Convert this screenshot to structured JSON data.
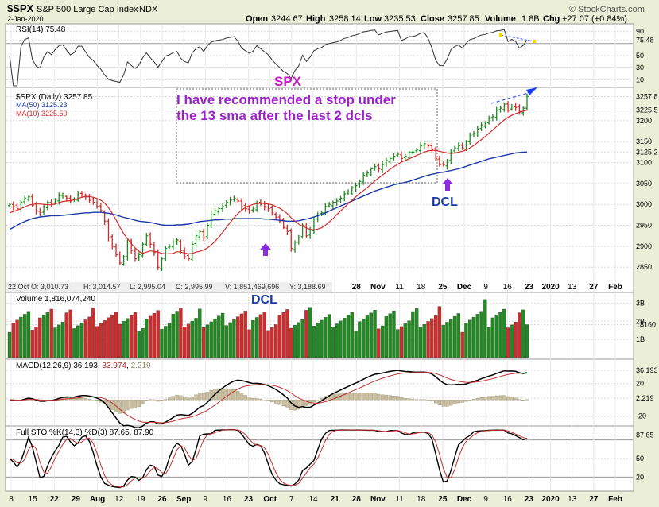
{
  "header": {
    "symbol": "$SPX",
    "name": "S&P 500 Large Cap Index",
    "exchange": "INDX",
    "date": "2-Jan-2020",
    "open_label": "Open",
    "open": "3244.67",
    "high_label": "High",
    "high": "3258.14",
    "low_label": "Low",
    "low": "3235.53",
    "close_label": "Close",
    "close": "3257.85",
    "volume_label": "Volume",
    "volume": "1.8B",
    "chg_label": "Chg",
    "chg": "+27.07 (+0.84%)",
    "brand": "© StockCharts.com"
  },
  "rsi_panel": {
    "label": "RSI(14) 75.48",
    "ticks": [
      "90",
      "75.48",
      "50",
      "30",
      "10"
    ],
    "tick_values": [
      90,
      75.48,
      50,
      30,
      10
    ],
    "ylim": [
      0,
      100
    ]
  },
  "price_panel": {
    "legend": [
      "$SPX (Daily) 3257.85",
      "MA(50) 3125.23",
      "MA(10) 3225.50"
    ],
    "ticks": [
      "3257.8",
      "3225.5",
      "3200",
      "3150",
      "3125.2",
      "3100",
      "3050",
      "3000",
      "2950",
      "2900",
      "2850"
    ],
    "tick_values": [
      3257.8,
      3225.5,
      3200,
      3150,
      3125.2,
      3100,
      3050,
      3000,
      2950,
      2900,
      2850
    ],
    "ylim": [
      2820,
      3272
    ],
    "annotation_title": "SPX",
    "annotation_line1": "I have recommended a stop under",
    "annotation_line2": "the 13 sma after the last 2 dcls",
    "dcl_label_1": "DCL",
    "dcl_label_2": "DCL",
    "crosshair_readout": [
      "22 Oct O: 3,010.73",
      "H: 3,014.57",
      "L: 2,995.04",
      "C: 2,995.99",
      "V: 1,851,469,696",
      "Y: 3,188.69"
    ],
    "inner_month_labels": [
      "28",
      "Nov",
      "11",
      "18",
      "25",
      "Dec",
      "9",
      "16",
      "23",
      "2020",
      "13",
      "27",
      "Feb"
    ]
  },
  "volume_panel": {
    "label": "Volume 1,816,074,240",
    "ticks": [
      "3B",
      "2B",
      "18160",
      "1B"
    ],
    "tick_values": [
      3000000000,
      2000000000,
      1816000000,
      1000000000
    ],
    "ylim": [
      0,
      3500000000
    ]
  },
  "macd_panel": {
    "label_prefix": "MACD(12,26,9)",
    "macd": "36.193",
    "signal": "33.974",
    "hist": "2.219",
    "ticks": [
      "36.193",
      "20",
      "2.219",
      "-20"
    ],
    "tick_values": [
      36.193,
      20,
      2.219,
      -20
    ],
    "ylim": [
      -30,
      48
    ]
  },
  "sto_panel": {
    "label": "Full STO %K(14,3) %D(3) 87.65, 87.90",
    "ticks": [
      "87.65",
      "50",
      "20"
    ],
    "tick_values": [
      87.65,
      50,
      20
    ],
    "ylim": [
      0,
      100
    ]
  },
  "x_axis": {
    "labels": [
      "8",
      "15",
      "22",
      "29",
      "Aug",
      "12",
      "19",
      "26",
      "Sep",
      "9",
      "16",
      "23",
      "Oct",
      "7",
      "14",
      "21",
      "28",
      "Nov",
      "11",
      "18",
      "25",
      "Dec",
      "9",
      "16",
      "23",
      "2020",
      "13",
      "27",
      "Feb"
    ]
  },
  "colors": {
    "up": "#1e8c1e",
    "down": "#d42a2a",
    "ma50": "#1a3aa8",
    "ma10": "#d42a2a",
    "annotation": "#a020d0",
    "dcl": "#1a3aa8",
    "arrow": "#8a2be2",
    "trend": "#3355ee"
  },
  "chart_data": {
    "type": "candlestick",
    "title": "$SPX S&P 500 Large Cap Index INDX",
    "xlabel": "",
    "ylabel": "",
    "ylim": [
      2820,
      3272
    ],
    "series": [
      {
        "name": "$SPX (Daily)",
        "values": [
          3000,
          2995,
          2990,
          3005,
          3015,
          3018,
          2998,
          2985,
          2980,
          2995,
          3005,
          3000,
          3010,
          3020,
          3022,
          3015,
          3008,
          3012,
          3025,
          3025,
          3018,
          3010,
          3005,
          2995,
          2985,
          2960,
          2920,
          2900,
          2880,
          2860,
          2875,
          2910,
          2890,
          2870,
          2880,
          2905,
          2925,
          2905,
          2885,
          2850,
          2870,
          2895,
          2900,
          2910,
          2915,
          2890,
          2875,
          2870,
          2905,
          2925,
          2935,
          2920,
          2950,
          2975,
          2985,
          2990,
          2995,
          3005,
          3010,
          3015,
          3008,
          2995,
          2990,
          2985,
          2990,
          3005,
          3000,
          2995,
          2990,
          2980,
          2970,
          2960,
          2945,
          2935,
          2895,
          2910,
          2920,
          2950,
          2925,
          2940,
          2965,
          2975,
          2980,
          2995,
          3000,
          3005,
          3008,
          3015,
          3025,
          3030,
          3040,
          3045,
          3055,
          3070,
          3075,
          3085,
          3090,
          3085,
          3095,
          3105,
          3110,
          3115,
          3120,
          3110,
          3115,
          3125,
          3125,
          3130,
          3140,
          3145,
          3140,
          3130,
          3110,
          3095,
          3095,
          3105,
          3125,
          3135,
          3140,
          3135,
          3150,
          3165,
          3170,
          3180,
          3190,
          3195,
          3205,
          3210,
          3225,
          3230,
          3240,
          3225,
          3235,
          3232,
          3222,
          3230,
          3257.85
        ]
      },
      {
        "name": "MA(50)",
        "values": [
          2940,
          2945,
          2950,
          2955,
          2959,
          2963,
          2966,
          2968,
          2970,
          2971,
          2972,
          2973,
          2973,
          2973,
          2974,
          2975,
          2976,
          2977,
          2978,
          2979,
          2980,
          2980,
          2981,
          2981,
          2981,
          2980,
          2979,
          2977,
          2975,
          2972,
          2969,
          2967,
          2965,
          2962,
          2960,
          2959,
          2958,
          2957,
          2955,
          2953,
          2951,
          2950,
          2950,
          2950,
          2951,
          2951,
          2952,
          2953,
          2955,
          2957,
          2959,
          2960,
          2961,
          2962,
          2963,
          2963,
          2964,
          2965,
          2965,
          2966,
          2966,
          2966,
          2966,
          2966,
          2966,
          2966,
          2966,
          2965,
          2965,
          2964,
          2963,
          2962,
          2961,
          2960,
          2960,
          2960,
          2961,
          2963,
          2965,
          2967,
          2970,
          2973,
          2976,
          2980,
          2984,
          2988,
          2992,
          2996,
          3000,
          3004,
          3008,
          3012,
          3016,
          3020,
          3024,
          3028,
          3032,
          3035,
          3038,
          3041,
          3044,
          3047,
          3049,
          3051,
          3053,
          3055,
          3058,
          3061,
          3064,
          3067,
          3070,
          3072,
          3074,
          3076,
          3077,
          3079,
          3081,
          3083,
          3085,
          3088,
          3091,
          3094,
          3097,
          3100,
          3103,
          3106,
          3109,
          3111,
          3113,
          3115,
          3117,
          3119,
          3121,
          3123,
          3124,
          3125,
          3125.23
        ]
      },
      {
        "name": "MA(10)",
        "values": [
          2980,
          2983,
          2986,
          2990,
          2994,
          2998,
          3000,
          3001,
          3001,
          3000,
          2999,
          2999,
          3001,
          3004,
          3007,
          3008,
          3009,
          3011,
          3014,
          3017,
          3019,
          3019,
          3017,
          3014,
          3010,
          3003,
          2992,
          2979,
          2963,
          2946,
          2930,
          2918,
          2906,
          2896,
          2888,
          2883,
          2886,
          2889,
          2888,
          2886,
          2883,
          2882,
          2882,
          2883,
          2887,
          2886,
          2884,
          2882,
          2883,
          2886,
          2888,
          2891,
          2896,
          2903,
          2912,
          2922,
          2933,
          2945,
          2957,
          2968,
          2978,
          2986,
          2993,
          2997,
          3000,
          3002,
          3003,
          3002,
          3001,
          2999,
          2995,
          2991,
          2985,
          2978,
          2968,
          2960,
          2953,
          2948,
          2944,
          2940,
          2939,
          2941,
          2944,
          2950,
          2958,
          2966,
          2976,
          2984,
          2993,
          3002,
          3010,
          3018,
          3026,
          3033,
          3040,
          3048,
          3056,
          3063,
          3070,
          3077,
          3084,
          3090,
          3096,
          3101,
          3105,
          3109,
          3113,
          3117,
          3121,
          3125,
          3128,
          3129,
          3129,
          3127,
          3125,
          3123,
          3122,
          3123,
          3125,
          3127,
          3130,
          3135,
          3141,
          3148,
          3155,
          3162,
          3170,
          3178,
          3186,
          3194,
          3202,
          3208,
          3213,
          3217,
          3220,
          3223,
          3225.5
        ]
      }
    ]
  }
}
